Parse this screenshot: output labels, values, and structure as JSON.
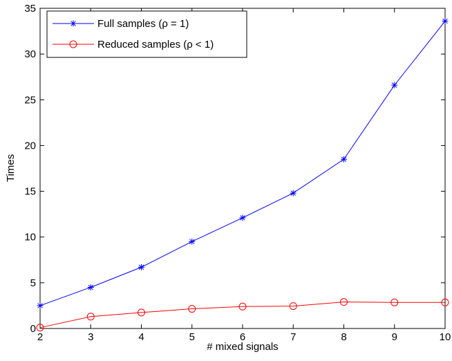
{
  "chart_data": {
    "type": "line",
    "title": "",
    "xlabel": "# mixed signals",
    "ylabel": "Times",
    "xlim": [
      2,
      10
    ],
    "ylim": [
      0,
      35
    ],
    "xticks": [
      2,
      3,
      4,
      5,
      6,
      7,
      8,
      9,
      10
    ],
    "yticks": [
      0,
      5,
      10,
      15,
      20,
      25,
      30,
      35
    ],
    "grid": false,
    "legend_position": "top-left",
    "x": [
      2,
      3,
      4,
      5,
      6,
      7,
      8,
      9,
      10
    ],
    "series": [
      {
        "name": "Full samples (ρ = 1)",
        "color": "#0000ff",
        "marker": "asterisk",
        "values": [
          2.5,
          4.5,
          6.7,
          9.5,
          12.1,
          14.8,
          18.5,
          26.6,
          33.6
        ]
      },
      {
        "name": "Reduced samples (ρ < 1)",
        "color": "#ff0000",
        "marker": "circle",
        "values": [
          0.1,
          1.3,
          1.75,
          2.15,
          2.4,
          2.45,
          2.9,
          2.85,
          2.85
        ]
      }
    ]
  }
}
